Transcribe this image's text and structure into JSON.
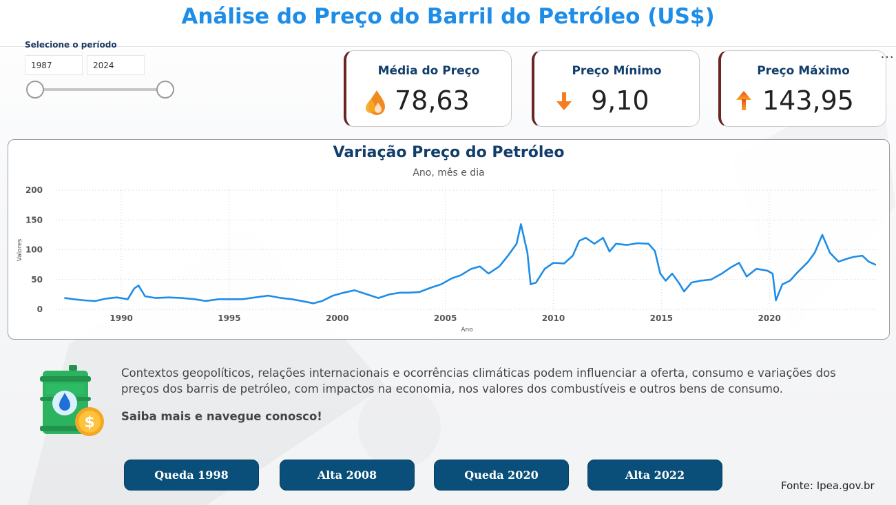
{
  "page": {
    "title": "Análise do Preço do Barril do Petróleo (US$)",
    "source": "Fonte: Ipea.gov.br"
  },
  "slicer": {
    "label": "Selecione o período",
    "start": "1987",
    "end": "2024"
  },
  "kpis": [
    {
      "title": "Média do Preço",
      "value": "78,63",
      "icon": "oil-drops-icon"
    },
    {
      "title": "Preço Mínimo",
      "value": "9,10",
      "icon": "arrow-down-icon"
    },
    {
      "title": "Preço Máximo",
      "value": "143,95",
      "icon": "arrow-up-icon"
    }
  ],
  "colors": {
    "title_blue": "#1e8de8",
    "navy": "#123e6b",
    "line": "#1e8de8",
    "button": "#0a4f79",
    "card_accent": "#6a2424",
    "arrow_orange": "#f57c1f"
  },
  "info": {
    "text": "Contextos geopolíticos, relações internacionais e ocorrências climáticas podem influenciar a oferta, consumo e  variações dos preços dos barris de petróleo, com impactos na economia, nos valores dos combustíveis e outros bens de consumo.",
    "cta": "Saiba mais e navegue conosco!"
  },
  "buttons": [
    {
      "label": "Queda 1998"
    },
    {
      "label": "Alta 2008"
    },
    {
      "label": "Queda 2020"
    },
    {
      "label": "Alta 2022"
    }
  ],
  "chart_data": {
    "type": "line",
    "title": "Variação Preço do Petróleo",
    "subtitle": "Ano, mês e dia",
    "xlabel": "Ano",
    "ylabel": "Valores",
    "xlim": [
      1987,
      2025
    ],
    "ylim": [
      0,
      200
    ],
    "xticks": [
      1990,
      1995,
      2000,
      2005,
      2010,
      2015,
      2020
    ],
    "yticks": [
      0,
      50,
      100,
      150,
      200
    ],
    "grid": true,
    "series": [
      {
        "x": [
          1987.4,
          1987.8,
          1988.3,
          1988.8,
          1989.3,
          1989.8,
          1990.3,
          1990.6,
          1990.8,
          1991.1,
          1991.6,
          1992.2,
          1992.8,
          1993.4,
          1993.9,
          1994.5,
          1995.0,
          1995.6,
          1996.2,
          1996.8,
          1997.4,
          1997.9,
          1998.5,
          1998.9,
          1999.3,
          1999.8,
          2000.3,
          2000.8,
          2001.3,
          2001.9,
          2002.4,
          2002.9,
          2003.3,
          2003.8,
          2004.3,
          2004.8,
          2005.3,
          2005.7,
          2006.2,
          2006.6,
          2007.0,
          2007.5,
          2007.9,
          2008.3,
          2008.5,
          2008.8,
          2008.95,
          2009.2,
          2009.6,
          2010.0,
          2010.5,
          2010.9,
          2011.2,
          2011.5,
          2011.9,
          2012.3,
          2012.6,
          2012.9,
          2013.4,
          2013.9,
          2014.4,
          2014.7,
          2014.95,
          2015.2,
          2015.5,
          2015.8,
          2016.05,
          2016.4,
          2016.8,
          2017.3,
          2017.8,
          2018.2,
          2018.6,
          2018.95,
          2019.4,
          2019.9,
          2020.15,
          2020.3,
          2020.6,
          2020.95,
          2021.3,
          2021.8,
          2022.1,
          2022.45,
          2022.8,
          2023.2,
          2023.6,
          2023.9,
          2024.3,
          2024.6,
          2024.9
        ],
        "y": [
          19,
          17,
          15,
          14,
          18,
          20,
          17,
          35,
          40,
          22,
          19,
          20,
          19,
          17,
          14,
          17,
          17,
          17,
          20,
          23,
          19,
          17,
          13,
          10,
          14,
          23,
          28,
          32,
          26,
          19,
          25,
          28,
          28,
          29,
          36,
          42,
          52,
          57,
          68,
          72,
          60,
          72,
          90,
          110,
          143,
          95,
          42,
          45,
          68,
          78,
          77,
          90,
          115,
          120,
          110,
          120,
          97,
          110,
          108,
          111,
          110,
          98,
          60,
          48,
          60,
          45,
          30,
          45,
          48,
          50,
          60,
          70,
          78,
          55,
          68,
          65,
          60,
          15,
          42,
          48,
          62,
          80,
          95,
          125,
          95,
          80,
          85,
          88,
          90,
          80,
          75
        ]
      }
    ]
  }
}
